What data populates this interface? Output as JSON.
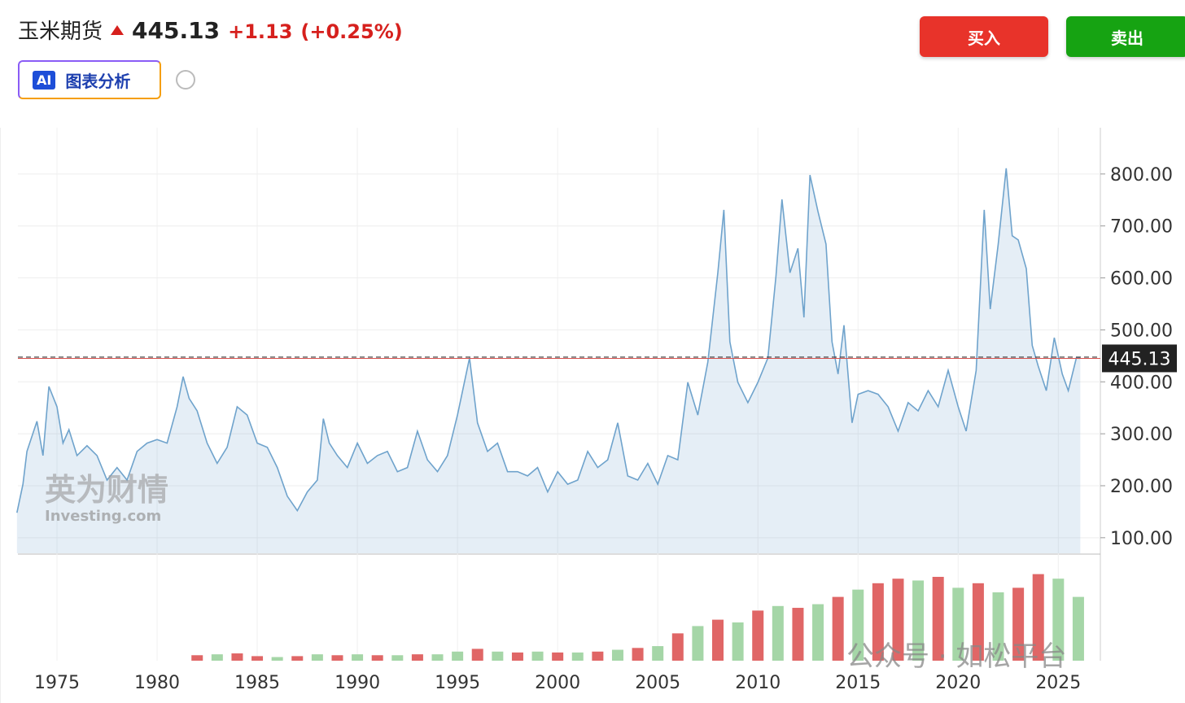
{
  "header": {
    "title": "玉米期货",
    "price": "445.13",
    "change": "+1.13",
    "change_pct": "(+0.25%)",
    "buy": "买入",
    "sell": "卖出",
    "ai_badge": "AI",
    "ai_label": "图表分析"
  },
  "watermarks": {
    "brand_cn": "英为财情",
    "brand_en": "Investing.com",
    "wechat": "公众号 · 如松平台"
  },
  "chart_data": {
    "type": "line",
    "xlim": [
      1973.05,
      2027.1
    ],
    "xticks": [
      1975,
      1980,
      1985,
      1990,
      1995,
      2000,
      2005,
      2010,
      2015,
      2020,
      2025
    ],
    "ylim": [
      70,
      889
    ],
    "yticks": [
      {
        "value": 100,
        "label": "100.00"
      },
      {
        "value": 200,
        "label": "200.00"
      },
      {
        "value": 300,
        "label": "300.00"
      },
      {
        "value": 400,
        "label": "400.00"
      },
      {
        "value": 500,
        "label": "500.00"
      },
      {
        "value": 600,
        "label": "600.00"
      },
      {
        "value": 700,
        "label": "700.00"
      },
      {
        "value": 800,
        "label": "800.00"
      }
    ],
    "grid": true,
    "last": 445.13,
    "last_color": "#d9534f",
    "series": [
      {
        "color": "#6fa3cc",
        "x": [
          1973.0,
          1973.3,
          1973.5,
          1974.0,
          1974.3,
          1974.6,
          1975.0,
          1975.3,
          1975.6,
          1976.0,
          1976.5,
          1977.0,
          1977.5,
          1978.0,
          1978.5,
          1979.0,
          1979.5,
          1980.0,
          1980.5,
          1981.0,
          1981.3,
          1981.6,
          1982.0,
          1982.5,
          1983.0,
          1983.5,
          1984.0,
          1984.5,
          1985.0,
          1985.5,
          1986.0,
          1986.5,
          1987.0,
          1987.5,
          1988.0,
          1988.3,
          1988.6,
          1989.0,
          1989.5,
          1990.0,
          1990.5,
          1991.0,
          1991.5,
          1992.0,
          1992.5,
          1993.0,
          1993.5,
          1994.0,
          1994.5,
          1995.0,
          1995.6,
          1996.0,
          1996.5,
          1997.0,
          1997.5,
          1998.0,
          1998.5,
          1999.0,
          1999.5,
          2000.0,
          2000.5,
          2001.0,
          2001.5,
          2002.0,
          2002.5,
          2003.0,
          2003.5,
          2004.0,
          2004.5,
          2005.0,
          2005.5,
          2006.0,
          2006.5,
          2007.0,
          2007.5,
          2008.0,
          2008.3,
          2008.6,
          2009.0,
          2009.5,
          2010.0,
          2010.5,
          2010.9,
          2011.2,
          2011.6,
          2012.0,
          2012.3,
          2012.6,
          2013.0,
          2013.4,
          2013.7,
          2014.0,
          2014.3,
          2014.7,
          2015.0,
          2015.5,
          2016.0,
          2016.5,
          2017.0,
          2017.5,
          2018.0,
          2018.5,
          2019.0,
          2019.5,
          2020.0,
          2020.4,
          2020.9,
          2021.3,
          2021.6,
          2022.0,
          2022.4,
          2022.7,
          2023.0,
          2023.4,
          2023.7,
          2024.0,
          2024.4,
          2024.8,
          2025.2,
          2025.5,
          2025.9,
          2026.1
        ],
        "values": [
          148,
          203,
          266,
          324,
          258,
          391,
          352,
          282,
          308,
          258,
          277,
          258,
          211,
          235,
          211,
          266,
          282,
          289,
          282,
          352,
          410,
          368,
          344,
          282,
          243,
          274,
          352,
          336,
          282,
          274,
          235,
          180,
          152,
          188,
          211,
          329,
          282,
          258,
          235,
          282,
          243,
          258,
          266,
          227,
          235,
          305,
          250,
          227,
          258,
          336,
          446,
          321,
          266,
          282,
          227,
          227,
          219,
          235,
          188,
          227,
          203,
          211,
          266,
          235,
          250,
          321,
          219,
          211,
          243,
          203,
          258,
          250,
          399,
          336,
          438,
          610,
          731,
          477,
          399,
          360,
          399,
          446,
          603,
          751,
          610,
          657,
          524,
          798,
          728,
          665,
          477,
          415,
          509,
          321,
          376,
          383,
          376,
          352,
          305,
          360,
          344,
          383,
          352,
          422,
          352,
          305,
          422,
          731,
          540,
          665,
          811,
          681,
          673,
          618,
          470,
          430,
          383,
          485,
          415,
          383,
          446,
          445.13
        ]
      }
    ],
    "volume": {
      "ylim": [
        0,
        100
      ],
      "x": [
        1982,
        1983,
        1984,
        1985,
        1986,
        1987,
        1988,
        1989,
        1990,
        1991,
        1992,
        1993,
        1994,
        1995,
        1996,
        1997,
        1998,
        1999,
        2000,
        2001,
        2002,
        2003,
        2004,
        2005,
        2006,
        2007,
        2008,
        2009,
        2010,
        2011,
        2012,
        2013,
        2014,
        2015,
        2016,
        2017,
        2018,
        2019,
        2020,
        2021,
        2022,
        2023,
        2024,
        2025,
        2026
      ],
      "values": [
        6,
        7,
        8,
        5,
        4,
        5,
        7,
        6,
        7,
        6,
        6,
        7,
        7,
        10,
        13,
        10,
        9,
        10,
        9,
        9,
        10,
        12,
        14,
        16,
        30,
        38,
        45,
        42,
        55,
        60,
        58,
        62,
        70,
        78,
        85,
        90,
        88,
        92,
        80,
        85,
        75,
        80,
        95,
        90,
        70
      ],
      "colors": [
        "#e06666",
        "#a5d6a7",
        "#e06666",
        "#e06666",
        "#a5d6a7",
        "#e06666",
        "#a5d6a7",
        "#e06666",
        "#a5d6a7",
        "#e06666",
        "#a5d6a7",
        "#e06666",
        "#a5d6a7",
        "#a5d6a7",
        "#e06666",
        "#a5d6a7",
        "#e06666",
        "#a5d6a7",
        "#e06666",
        "#a5d6a7",
        "#e06666",
        "#a5d6a7",
        "#e06666",
        "#a5d6a7",
        "#e06666",
        "#a5d6a7",
        "#e06666",
        "#a5d6a7",
        "#e06666",
        "#a5d6a7",
        "#e06666",
        "#a5d6a7",
        "#e06666",
        "#a5d6a7",
        "#e06666",
        "#e06666",
        "#a5d6a7",
        "#e06666",
        "#a5d6a7",
        "#e06666",
        "#a5d6a7",
        "#e06666",
        "#e06666",
        "#a5d6a7",
        "#a5d6a7"
      ]
    }
  }
}
